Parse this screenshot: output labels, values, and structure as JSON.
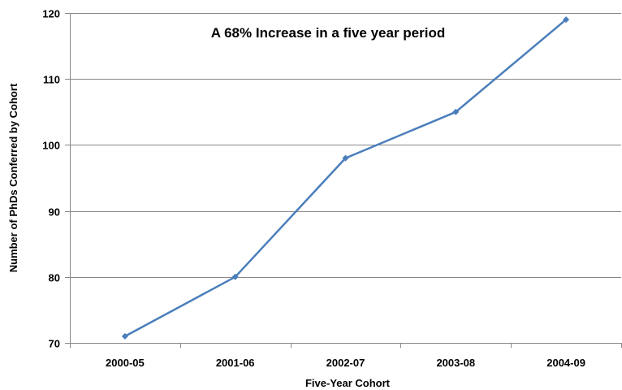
{
  "chart_data": {
    "type": "line",
    "title": "A 68% Increase in a five year period",
    "xlabel": "Five-Year Cohort",
    "ylabel": "Number of PhDs Conferred by Cohort",
    "categories": [
      "2000-05",
      "2001-06",
      "2002-07",
      "2003-08",
      "2004-09"
    ],
    "series": [
      {
        "values": [
          71,
          80,
          98,
          105,
          119
        ]
      }
    ],
    "ylim": [
      70,
      120
    ],
    "yticks": [
      "70",
      "80",
      "90",
      "100",
      "110",
      "120"
    ],
    "grid": "horizontal",
    "legend": "none",
    "colors": {
      "line": "#4a7ebb",
      "marker": "#4a7ebb",
      "grid": "#888888",
      "axis": "#888888"
    }
  }
}
